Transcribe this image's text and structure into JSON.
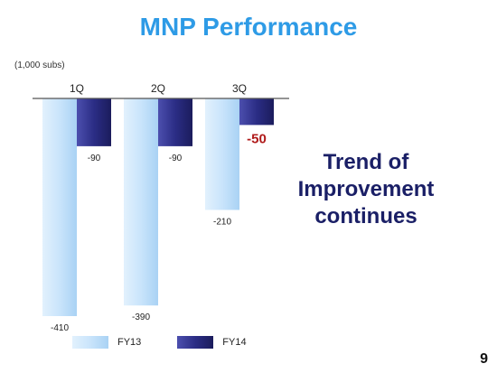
{
  "slide": {
    "title": "MNP Performance",
    "headline_lines": [
      "Trend of",
      "Improvement",
      "continues"
    ],
    "page_number": "9"
  },
  "colors": {
    "title": "#2e9be6",
    "headline": "#1a1f66",
    "fy13": "#c9e4fb",
    "fy14": "#2b2d85",
    "highlight_label": "#b01a1a"
  },
  "chart_data": {
    "type": "bar",
    "unit_label": "(1,000 subs)",
    "categories": [
      "1Q",
      "2Q",
      "3Q"
    ],
    "series": [
      {
        "name": "FY13",
        "values": [
          -410,
          -390,
          -210
        ],
        "labels": [
          "-410",
          "-390",
          "-210"
        ]
      },
      {
        "name": "FY14",
        "values": [
          -90,
          -90,
          -50
        ],
        "labels": [
          "-90",
          "-90",
          "-50"
        ]
      }
    ],
    "highlight": {
      "series": 1,
      "index": 2
    },
    "ylim": [
      -410,
      0
    ],
    "legend_position": "bottom",
    "grid": false
  }
}
